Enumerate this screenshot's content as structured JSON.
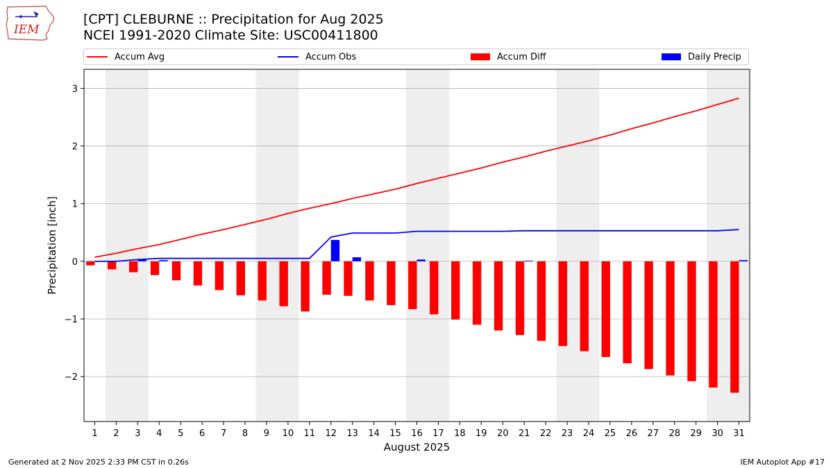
{
  "header": {
    "logo_text": "IEM",
    "title_line1": "[CPT] CLEBURNE :: Precipitation for Aug 2025",
    "title_line2": "NCEI 1991-2020 Climate Site: USC00411800"
  },
  "footer": {
    "generated": "Generated at 2 Nov 2025 2:33 PM CST in 0.26s",
    "app": "IEM Autoplot App #17"
  },
  "colors": {
    "avg": "#ff0000",
    "obs": "#0000ff",
    "diff": "#ff0000",
    "daily": "#0000ff",
    "weekend_shade": "#eeeeee",
    "grid": "#b0b0b0"
  },
  "chart_data": {
    "type": "bar",
    "xlabel": "August 2025",
    "ylabel": "Precipitation [inch]",
    "ylim": [
      -2.78,
      3.33
    ],
    "yticks": [
      3,
      2,
      1,
      0,
      -1,
      -2
    ],
    "ytick_labels": [
      "3",
      "2",
      "1",
      "0",
      "−1",
      "−2"
    ],
    "xlim": [
      0.5,
      31.5
    ],
    "x": [
      1,
      2,
      3,
      4,
      5,
      6,
      7,
      8,
      9,
      10,
      11,
      12,
      13,
      14,
      15,
      16,
      17,
      18,
      19,
      20,
      21,
      22,
      23,
      24,
      25,
      26,
      27,
      28,
      29,
      30,
      31
    ],
    "x_tick_labels": [
      "1",
      "2",
      "3",
      "4",
      "5",
      "6",
      "7",
      "8",
      "9",
      "10",
      "11",
      "12",
      "13",
      "14",
      "15",
      "16",
      "17",
      "18",
      "19",
      "20",
      "21",
      "22",
      "23",
      "24",
      "25",
      "26",
      "27",
      "28",
      "29",
      "30",
      "31"
    ],
    "grid": "horizontal",
    "legend_position": "top",
    "weekend_spans": [
      [
        1.5,
        3.5
      ],
      [
        8.5,
        10.5
      ],
      [
        15.5,
        17.5
      ],
      [
        22.5,
        24.5
      ],
      [
        29.5,
        31.5
      ]
    ],
    "series": [
      {
        "name": "Accum Avg",
        "kind": "line",
        "values": [
          0.07,
          0.14,
          0.22,
          0.29,
          0.38,
          0.47,
          0.55,
          0.64,
          0.73,
          0.83,
          0.92,
          1.0,
          1.09,
          1.17,
          1.25,
          1.35,
          1.44,
          1.53,
          1.62,
          1.72,
          1.81,
          1.91,
          2.0,
          2.09,
          2.19,
          2.3,
          2.4,
          2.51,
          2.61,
          2.72,
          2.83
        ]
      },
      {
        "name": "Accum Obs",
        "kind": "line",
        "values": [
          0.0,
          0.0,
          0.03,
          0.05,
          0.05,
          0.05,
          0.05,
          0.05,
          0.05,
          0.05,
          0.05,
          0.42,
          0.49,
          0.49,
          0.49,
          0.52,
          0.52,
          0.52,
          0.52,
          0.52,
          0.53,
          0.53,
          0.53,
          0.53,
          0.53,
          0.53,
          0.53,
          0.53,
          0.53,
          0.53,
          0.55
        ]
      },
      {
        "name": "Accum Diff",
        "kind": "bar",
        "values": [
          -0.07,
          -0.14,
          -0.19,
          -0.24,
          -0.33,
          -0.42,
          -0.5,
          -0.59,
          -0.68,
          -0.78,
          -0.87,
          -0.58,
          -0.6,
          -0.68,
          -0.76,
          -0.83,
          -0.92,
          -1.01,
          -1.1,
          -1.2,
          -1.28,
          -1.38,
          -1.47,
          -1.56,
          -1.66,
          -1.77,
          -1.87,
          -1.98,
          -2.08,
          -2.19,
          -2.28
        ]
      },
      {
        "name": "Daily Precip",
        "kind": "bar",
        "values": [
          0,
          0,
          0.03,
          0.02,
          0,
          0,
          0,
          0,
          0,
          0,
          0,
          0.37,
          0.07,
          0,
          0,
          0.03,
          0,
          0,
          0,
          0,
          0.01,
          0,
          0,
          0,
          0,
          0,
          0,
          0,
          0,
          0,
          0.02
        ]
      }
    ]
  }
}
